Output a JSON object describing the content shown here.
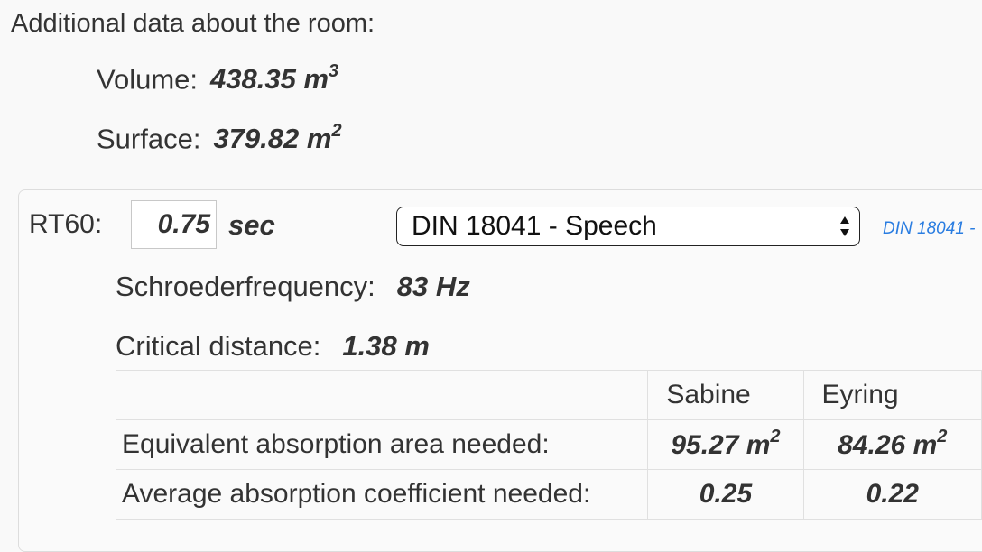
{
  "heading": "Additional data about the room:",
  "volume": {
    "label": "Volume:",
    "value": "438.35 m",
    "exp": "3"
  },
  "surface": {
    "label": "Surface:",
    "value": "379.82 m",
    "exp": "2"
  },
  "rt60": {
    "label": "RT60:",
    "value": "0.75",
    "unit": "sec",
    "standard_selected": "DIN 18041 - Speech",
    "link_text": "DIN 18041 -"
  },
  "schroeder": {
    "label": "Schroederfrequency:",
    "value": "83 Hz"
  },
  "critical": {
    "label": "Critical distance:",
    "value": "1.38 m"
  },
  "table": {
    "headers": [
      "",
      "Sabine",
      "Eyring"
    ],
    "rows": [
      {
        "label": "Equivalent absorption area needed:",
        "sabine": "95.27 m",
        "sabine_exp": "2",
        "eyring": "84.26 m",
        "eyring_exp": "2"
      },
      {
        "label": "Average absorption coefficient needed:",
        "sabine": "0.25",
        "eyring": "0.22"
      }
    ]
  }
}
